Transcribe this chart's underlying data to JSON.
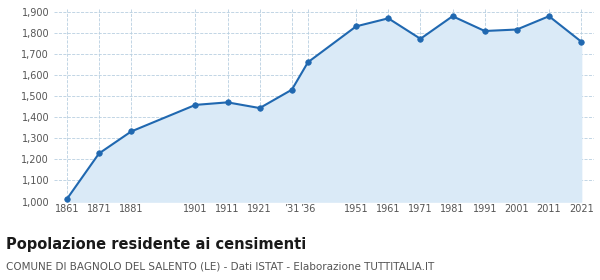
{
  "years": [
    1861,
    1871,
    1881,
    1901,
    1911,
    1921,
    1931,
    1936,
    1951,
    1961,
    1971,
    1981,
    1991,
    2001,
    2011,
    2021
  ],
  "population": [
    1012,
    1228,
    1332,
    1458,
    1470,
    1443,
    1530,
    1660,
    1830,
    1868,
    1771,
    1878,
    1808,
    1815,
    1878,
    1758
  ],
  "line_color": "#2068b0",
  "fill_color": "#daeaf7",
  "marker_color": "#2068b0",
  "grid_color": "#b8cfe0",
  "background_color": "#ffffff",
  "title": "Popolazione residente ai censimenti",
  "subtitle": "COMUNE DI BAGNOLO DEL SALENTO (LE) - Dati ISTAT - Elaborazione TUTTITALIA.IT",
  "title_fontsize": 10.5,
  "subtitle_fontsize": 7.5,
  "ylabel_min": 1000,
  "ylabel_max": 1900,
  "ylabel_step": 100
}
